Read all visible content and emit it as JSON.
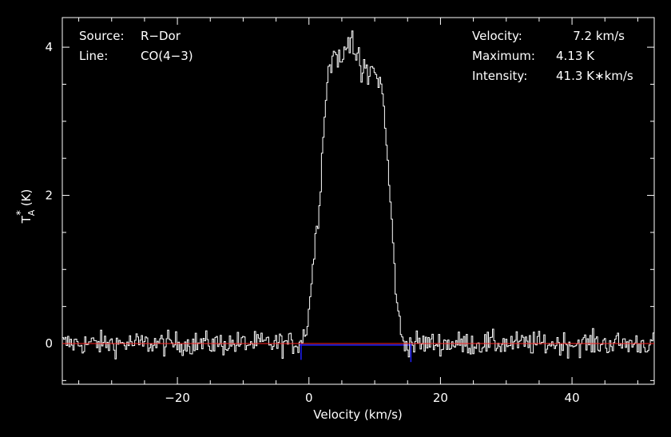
{
  "chart_data": {
    "type": "line",
    "xlabel": "Velocity (km/s)",
    "ylabel": "T",
    "ylabel_sub": "A",
    "ylabel_sup": "*",
    "ylabel_unit": "(K)",
    "xlim": [
      -37.5,
      52.5
    ],
    "ylim": [
      -0.55,
      4.4
    ],
    "xticks": [
      -20,
      0,
      20,
      40
    ],
    "xtick_labels": [
      "−20",
      "0",
      "20",
      "40"
    ],
    "yticks": [
      0,
      2,
      4
    ],
    "ytick_labels": [
      "0",
      "2",
      "4"
    ],
    "grid": false,
    "colors": {
      "spectrum": "#ffffff",
      "baseline": "#ff2020",
      "residual": "#2020ff",
      "background": "#000000",
      "axes": "#ffffff"
    },
    "baseline_range": [
      -37.5,
      52.5
    ],
    "residual_range": [
      -1.5,
      15.5
    ],
    "noise_rms": 0.08,
    "channel_width": 0.2,
    "profile": {
      "x": [
        -37.5,
        -1.8,
        -1.2,
        -0.5,
        0.0,
        0.5,
        1.0,
        1.5,
        2.0,
        2.5,
        3.0,
        3.5,
        4.0,
        4.5,
        5.0,
        5.5,
        6.0,
        6.5,
        7.0,
        7.5,
        8.0,
        8.5,
        9.0,
        9.5,
        10.0,
        10.5,
        11.0,
        11.5,
        12.0,
        12.5,
        13.0,
        13.5,
        14.0,
        14.6,
        52.5
      ],
      "y": [
        0.0,
        0.0,
        0.05,
        0.15,
        0.45,
        0.95,
        1.4,
        1.8,
        2.5,
        3.3,
        3.7,
        3.8,
        3.95,
        3.85,
        3.75,
        4.0,
        4.05,
        4.25,
        3.9,
        3.85,
        3.6,
        3.75,
        3.55,
        3.7,
        3.75,
        3.45,
        3.6,
        3.05,
        2.4,
        1.8,
        1.0,
        0.5,
        0.1,
        0.0,
        0.0
      ]
    }
  },
  "annotations": {
    "source_label": "Source:",
    "source_value": "R−Dor",
    "line_label": "Line:",
    "line_value": "CO(4−3)",
    "velocity_label": "Velocity:",
    "velocity_value": "7.2 km/s",
    "maximum_label": "Maximum:",
    "maximum_value": "4.13 K",
    "intensity_label": "Intensity:",
    "intensity_value": "41.3 K∗km/s"
  }
}
